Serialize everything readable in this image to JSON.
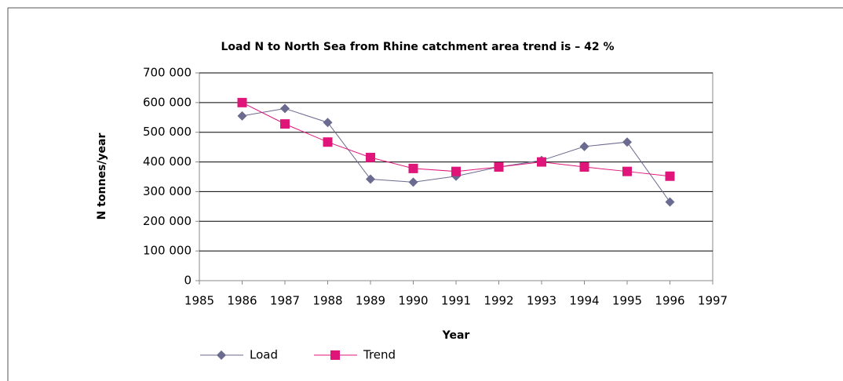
{
  "chart_data": {
    "type": "line",
    "title": "Load N to North Sea from Rhine catchment area trend is – 42 %",
    "x_label": "Year",
    "y_label": "N tonnes/year",
    "x": [
      1986,
      1987,
      1988,
      1989,
      1990,
      1991,
      1992,
      1993,
      1994,
      1995,
      1996
    ],
    "series": [
      {
        "name": "Load",
        "color": "#6b6a8f",
        "marker": "diamond",
        "values": [
          555000,
          580000,
          533000,
          342000,
          332000,
          352000,
          383000,
          405000,
          452000,
          467000,
          265000
        ]
      },
      {
        "name": "Trend",
        "color": "#e0157a",
        "marker": "square",
        "values": [
          600000,
          528000,
          467000,
          415000,
          378000,
          368000,
          383000,
          400000,
          383000,
          368000,
          352000
        ]
      }
    ],
    "xlim": [
      1985,
      1997
    ],
    "xticks": [
      1985,
      1986,
      1987,
      1988,
      1989,
      1990,
      1991,
      1992,
      1993,
      1994,
      1995,
      1996,
      1997
    ],
    "ylim": [
      0,
      700000
    ],
    "yticks": [
      0,
      {
        "value": 100000,
        "label": "100 000"
      },
      {
        "value": 200000,
        "label": "200 000"
      },
      {
        "value": 300000,
        "label": "300 000"
      },
      {
        "value": 400000,
        "label": "400 000"
      },
      {
        "value": 500000,
        "label": "500 000"
      },
      {
        "value": 600000,
        "label": "600 000"
      },
      {
        "value": 700000,
        "label": "700 000"
      }
    ],
    "grid": true,
    "legend": "bottom-left"
  }
}
